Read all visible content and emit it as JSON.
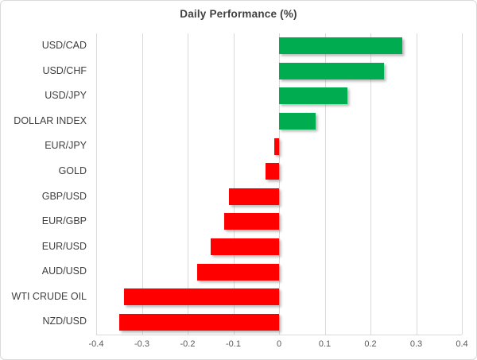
{
  "chart_data": {
    "type": "bar",
    "orientation": "horizontal",
    "title": "Daily Performance (%)",
    "categories": [
      "USD/CAD",
      "USD/CHF",
      "USD/JPY",
      "DOLLAR INDEX",
      "EUR/JPY",
      "GOLD",
      "GBP/USD",
      "EUR/GBP",
      "EUR/USD",
      "AUD/USD",
      "WTI CRUDE OIL",
      "NZD/USD"
    ],
    "values": [
      0.27,
      0.23,
      0.15,
      0.08,
      -0.01,
      -0.03,
      -0.11,
      -0.12,
      -0.15,
      -0.18,
      -0.34,
      -0.35
    ],
    "xlabel": "",
    "ylabel": "",
    "xlim": [
      -0.4,
      0.4
    ],
    "x_tick_labels": [
      "-0.4",
      "-0.3",
      "-0.2",
      "-0.1",
      "0",
      "0.1",
      "0.2",
      "0.3",
      "0.4"
    ],
    "x_tick_values": [
      -0.4,
      -0.3,
      -0.2,
      -0.1,
      0,
      0.1,
      0.2,
      0.3,
      0.4
    ],
    "grid": true,
    "legend": false,
    "colors": {
      "positive_bar": "#00ac50",
      "negative_bar": "#ff0000",
      "gridline": "#d9d9d9",
      "axis_line": "#d9d9d9",
      "title_text": "#404040",
      "category_text": "#404040",
      "tick_text": "#595959",
      "background": "#ffffff",
      "chart_border": "#d9d9d9"
    }
  }
}
